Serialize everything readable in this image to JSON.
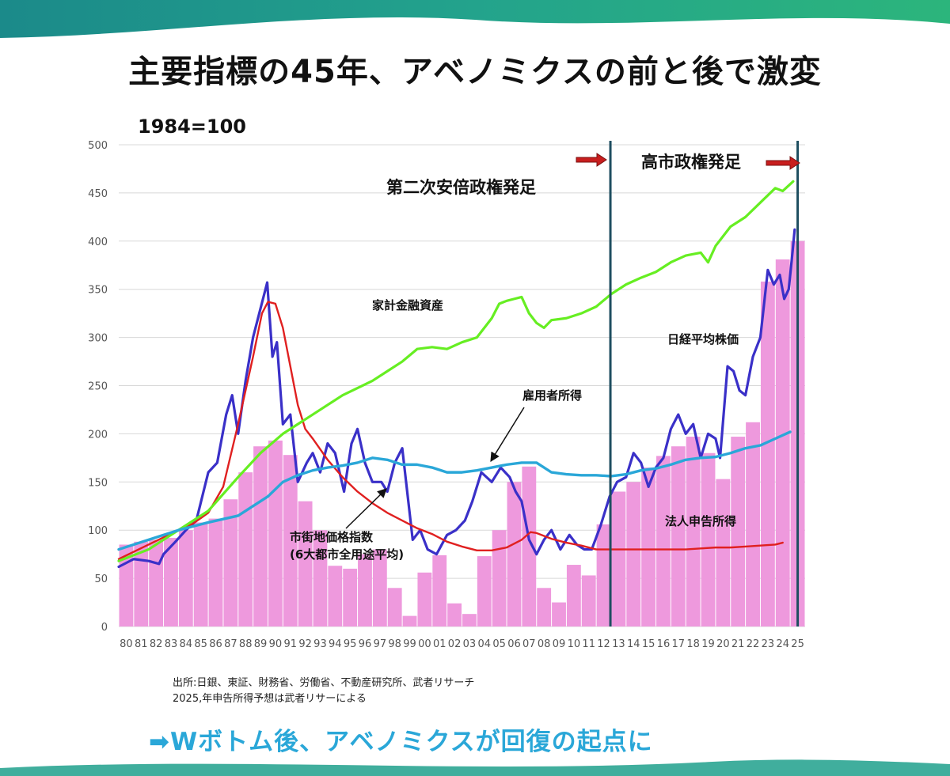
{
  "title": "主要指標の45年、アベノミクスの前と後で激変",
  "base_label": "1984=100",
  "source_line1": "出所:日銀、東証、財務省、労働省、不動産研究所、武者リサーチ",
  "source_line2": "2025,年申告所得予想は武者リサーによる",
  "conclusion": "➡Wボトム後、アベノミクスが回復の起点に",
  "colors": {
    "nikkei": "#3a30c8",
    "land": "#e02020",
    "household": "#66ee22",
    "employee": "#2aa7d8",
    "corporate": "#ee99dd",
    "vline": "#1e4e60",
    "arrow": "#c81e1e",
    "wave": "#1ea08c"
  },
  "chart_data": {
    "type": "bar+line",
    "title": "主要指標の45年、アベノミクスの前と後で激変",
    "base": "1984=100",
    "ylim": [
      0,
      500
    ],
    "yticks": [
      0,
      50,
      100,
      150,
      200,
      250,
      300,
      350,
      400,
      450,
      500
    ],
    "xlim": [
      1980,
      2026
    ],
    "grid": true,
    "categories": [
      "80",
      "81",
      "82",
      "83",
      "84",
      "85",
      "86",
      "87",
      "88",
      "89",
      "90",
      "91",
      "92",
      "93",
      "94",
      "95",
      "96",
      "97",
      "98",
      "99",
      "00",
      "01",
      "02",
      "03",
      "04",
      "05",
      "06",
      "07",
      "08",
      "09",
      "10",
      "11",
      "12",
      "13",
      "14",
      "15",
      "16",
      "17",
      "18",
      "19",
      "20",
      "21",
      "22",
      "23",
      "24",
      "25"
    ],
    "bar_series": {
      "name": "法人申告所得",
      "values": [
        85,
        88,
        90,
        92,
        100,
        108,
        112,
        132,
        160,
        187,
        193,
        178,
        130,
        100,
        63,
        60,
        75,
        80,
        40,
        11,
        56,
        74,
        24,
        13,
        73,
        100,
        150,
        166,
        40,
        25,
        64,
        53,
        106,
        140,
        150,
        165,
        177,
        187,
        197,
        180,
        153,
        197,
        212,
        358,
        381,
        400
      ]
    },
    "line_series": [
      {
        "name": "日経平均株価",
        "x": [
          1980,
          1981,
          1982,
          1982.7,
          1983,
          1983.8,
          1984.5,
          1985.2,
          1986,
          1986.6,
          1987.2,
          1987.6,
          1988,
          1988.5,
          1989,
          1989.5,
          1989.95,
          1990.3,
          1990.6,
          1991,
          1991.5,
          1992,
          1992.6,
          1993,
          1993.5,
          1994,
          1994.5,
          1995.1,
          1995.6,
          1996,
          1996.5,
          1997,
          1997.6,
          1998,
          1998.5,
          1999,
          1999.7,
          2000.2,
          2000.7,
          2001.3,
          2002,
          2002.6,
          2003.2,
          2003.7,
          2004.3,
          2005,
          2005.6,
          2006.2,
          2006.6,
          2007,
          2007.5,
          2008,
          2008.5,
          2009,
          2009.6,
          2010.2,
          2010.7,
          2011.2,
          2011.7,
          2012.3,
          2012.9,
          2013.4,
          2014,
          2014.5,
          2015,
          2015.5,
          2016,
          2016.5,
          2017,
          2017.5,
          2018,
          2018.5,
          2019,
          2019.5,
          2020,
          2020.3,
          2020.8,
          2021.2,
          2021.6,
          2022,
          2022.5,
          2023,
          2023.5,
          2023.9,
          2024.3,
          2024.6,
          2024.9,
          2025.1,
          2025.3
        ],
        "values": [
          62,
          70,
          68,
          65,
          75,
          88,
          100,
          110,
          160,
          170,
          220,
          240,
          200,
          255,
          300,
          330,
          357,
          280,
          295,
          210,
          220,
          150,
          170,
          180,
          160,
          190,
          180,
          140,
          190,
          205,
          170,
          150,
          150,
          140,
          170,
          185,
          90,
          100,
          80,
          75,
          95,
          100,
          110,
          130,
          160,
          150,
          165,
          155,
          140,
          130,
          90,
          75,
          90,
          100,
          80,
          95,
          85,
          80,
          80,
          105,
          135,
          150,
          155,
          180,
          170,
          145,
          165,
          175,
          205,
          220,
          200,
          210,
          175,
          200,
          195,
          175,
          270,
          265,
          245,
          240,
          280,
          300,
          370,
          355,
          365,
          340,
          350,
          380,
          412
        ]
      },
      {
        "name": "市街地価格指数 (6大都市全用途平均)",
        "x": [
          1980,
          1982,
          1984,
          1985,
          1986,
          1987,
          1988,
          1989,
          1989.6,
          1990,
          1990.5,
          1991,
          1991.5,
          1992,
          1992.5,
          1993,
          1994,
          1995,
          1996,
          1997,
          1998,
          1999,
          2000,
          2001,
          2002,
          2003,
          2004,
          2005,
          2006,
          2007,
          2007.6,
          2008,
          2009,
          2010,
          2011,
          2012,
          2013,
          2014,
          2015,
          2016,
          2017,
          2018,
          2019,
          2020,
          2021,
          2022,
          2023,
          2024,
          2024.5
        ],
        "values": [
          70,
          85,
          100,
          107,
          118,
          145,
          210,
          280,
          325,
          337,
          335,
          310,
          270,
          230,
          205,
          195,
          173,
          155,
          140,
          128,
          118,
          110,
          102,
          96,
          88,
          83,
          79,
          79,
          82,
          90,
          98,
          97,
          91,
          87,
          84,
          80,
          80,
          80,
          80,
          80,
          80,
          80,
          81,
          82,
          82,
          83,
          84,
          85,
          87
        ]
      },
      {
        "name": "家計金融資産",
        "x": [
          1980,
          1982,
          1984,
          1986,
          1988,
          1989.5,
          1991,
          1993,
          1995,
          1997,
          1998,
          1999,
          2000,
          2001,
          2002,
          2003,
          2004,
          2005,
          2005.5,
          2006,
          2006.5,
          2007,
          2007.5,
          2008,
          2008.5,
          2009,
          2010,
          2011,
          2012,
          2013,
          2014,
          2015,
          2016,
          2017,
          2018,
          2019,
          2019.5,
          2020,
          2021,
          2022,
          2023,
          2024,
          2024.5,
          2025.2
        ],
        "values": [
          68,
          80,
          100,
          120,
          155,
          180,
          200,
          220,
          240,
          255,
          265,
          275,
          288,
          290,
          288,
          295,
          300,
          320,
          335,
          338,
          340,
          342,
          325,
          315,
          310,
          318,
          320,
          325,
          332,
          345,
          355,
          362,
          368,
          378,
          385,
          388,
          378,
          395,
          415,
          425,
          440,
          455,
          452,
          462
        ]
      },
      {
        "name": "雇用者所得",
        "x": [
          1980,
          1982,
          1984,
          1986,
          1988,
          1990,
          1991,
          1992,
          1993,
          1994,
          1995,
          1996,
          1997,
          1998,
          1999,
          2000,
          2001,
          2002,
          2003,
          2004,
          2005,
          2006,
          2007,
          2008,
          2009,
          2010,
          2011,
          2012,
          2013,
          2014,
          2015,
          2016,
          2017,
          2018,
          2019,
          2020,
          2021,
          2022,
          2023,
          2024,
          2025
        ],
        "values": [
          80,
          90,
          100,
          108,
          115,
          135,
          150,
          157,
          162,
          165,
          167,
          170,
          175,
          173,
          168,
          168,
          165,
          160,
          160,
          162,
          165,
          168,
          170,
          170,
          160,
          158,
          157,
          157,
          156,
          158,
          162,
          164,
          168,
          173,
          175,
          176,
          180,
          185,
          188,
          195,
          202
        ]
      }
    ],
    "labels": {
      "household": "家計金融資産",
      "nikkei": "日経平均株価",
      "employee": "雇用者所得",
      "land_line1": "市街地価格指数",
      "land_line2": "(6大都市全用途平均)",
      "corporate": "法人申告所得"
    },
    "annotations": {
      "abe": "第二次安倍政権発足",
      "takaichi": "高市政権発足"
    },
    "vlines": [
      2012.95,
      2025.5
    ]
  }
}
